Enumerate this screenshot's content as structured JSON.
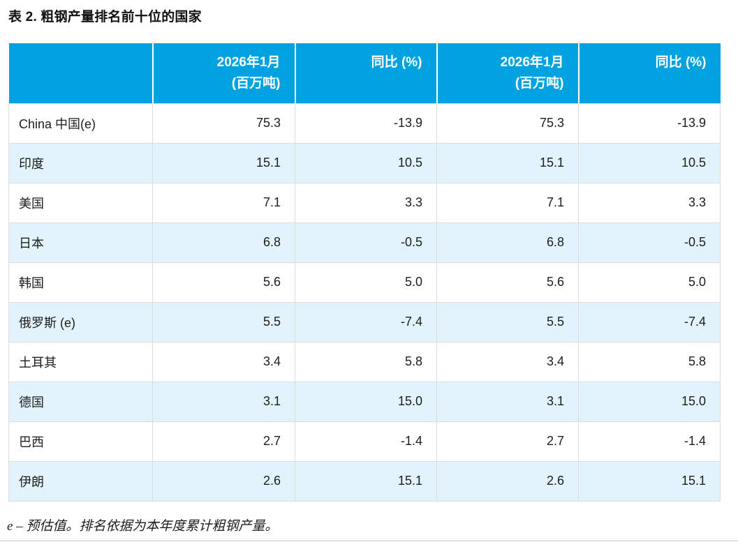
{
  "title": "表 2. 粗钢产量排名前十位的国家",
  "table": {
    "headers": [
      {
        "line1": "2026年1月",
        "line2": "(百万吨)"
      },
      {
        "line1": "同比 (%)",
        "line2": ""
      },
      {
        "line1": "2026年1月",
        "line2": "(百万吨)"
      },
      {
        "line1": "同比 (%)",
        "line2": ""
      }
    ],
    "rows": [
      {
        "country": "China 中国(e)",
        "values": [
          "75.3",
          "-13.9",
          "75.3",
          "-13.9"
        ]
      },
      {
        "country": "印度",
        "values": [
          "15.1",
          "10.5",
          "15.1",
          "10.5"
        ]
      },
      {
        "country": "美国",
        "values": [
          "7.1",
          "3.3",
          "7.1",
          "3.3"
        ]
      },
      {
        "country": "日本",
        "values": [
          "6.8",
          "-0.5",
          "6.8",
          "-0.5"
        ]
      },
      {
        "country": "韩国",
        "values": [
          "5.6",
          "5.0",
          "5.6",
          "5.0"
        ]
      },
      {
        "country": "俄罗斯 (e)",
        "values": [
          "5.5",
          "-7.4",
          "5.5",
          "-7.4"
        ]
      },
      {
        "country": "土耳其",
        "values": [
          "3.4",
          "5.8",
          "3.4",
          "5.8"
        ]
      },
      {
        "country": "德国",
        "values": [
          "3.1",
          "15.0",
          "3.1",
          "15.0"
        ]
      },
      {
        "country": "巴西",
        "values": [
          "2.7",
          "-1.4",
          "2.7",
          "-1.4"
        ]
      },
      {
        "country": "伊朗",
        "values": [
          "2.6",
          "15.1",
          "2.6",
          "15.1"
        ]
      }
    ]
  },
  "footnote": "e – 预估值。排名依据为本年度累计粗钢产量。",
  "colors": {
    "header_bg": "#00a2e1",
    "header_text": "#ffffff",
    "stripe_bg": "#e2f3fb",
    "row_bg": "#ffffff",
    "border": "#dcdde0",
    "text": "#1d1d1b"
  }
}
